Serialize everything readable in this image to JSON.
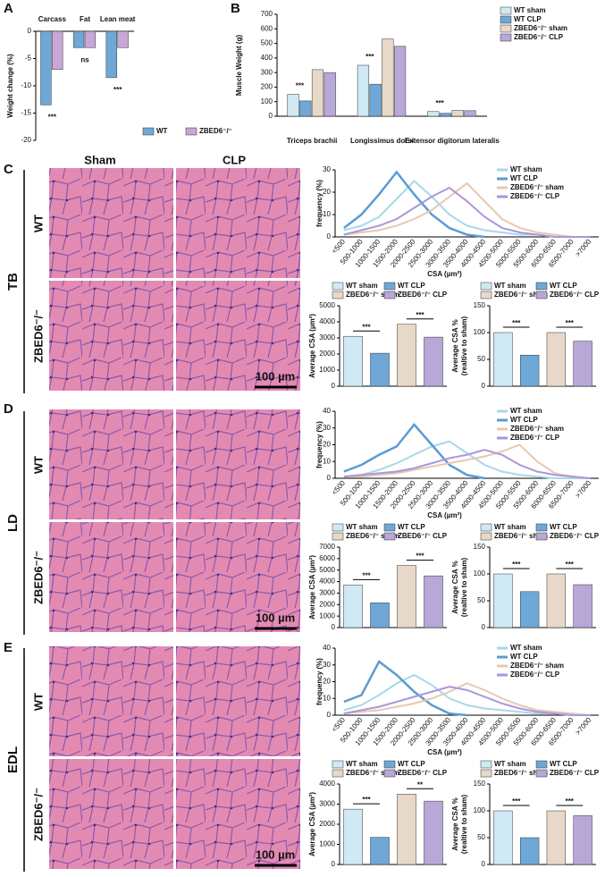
{
  "figure": {
    "panel_labels": [
      "A",
      "B",
      "C",
      "D",
      "E"
    ],
    "columns": [
      "Sham",
      "CLP"
    ],
    "sections": [
      {
        "name": "TB",
        "rows": [
          "WT",
          "ZBED6⁻/⁻"
        ],
        "scale_bar": "100 µm"
      },
      {
        "name": "LD",
        "rows": [
          "WT",
          "ZBED6⁻/⁻"
        ],
        "scale_bar": "100 µm"
      },
      {
        "name": "EDL",
        "rows": [
          "WT",
          "ZBED6⁻/⁻"
        ],
        "scale_bar": "100 µm"
      }
    ]
  },
  "chart_data": [
    {
      "type": "bar",
      "y_label": [
        "Weight change (%)"
      ],
      "categories": [
        "Carcass",
        "Fat",
        "Lean meat"
      ],
      "ylim": [
        -20,
        0
      ],
      "yticks": [
        -20,
        -15,
        -10,
        -5,
        0
      ],
      "annotations": [
        "***",
        "ns",
        "***"
      ],
      "series": [
        {
          "name": "WT",
          "color": "#6fa8d6",
          "values": [
            -13.5,
            -3,
            -8.5
          ]
        },
        {
          "name": "ZBED6⁻/⁻",
          "color": "#c9a6d8",
          "values": [
            -7,
            -3,
            -3
          ]
        }
      ]
    },
    {
      "type": "bar",
      "y_label": [
        "Muscle Weight (g)"
      ],
      "categories": [
        "Triceps brachii",
        "Longissimus dorsi",
        "Extensor digitorum lateralis"
      ],
      "ylim": [
        0,
        700
      ],
      "yticks": [
        0,
        100,
        200,
        300,
        400,
        500,
        600,
        700
      ],
      "annotations": [
        "***",
        "***",
        "***"
      ],
      "series": [
        {
          "name": "WT sham",
          "color": "#cfe9f5",
          "values": [
            150,
            350,
            32
          ]
        },
        {
          "name": "WT CLP",
          "color": "#6fa8d6",
          "values": [
            105,
            220,
            20
          ]
        },
        {
          "name": "ZBED6⁻/⁻ sham",
          "color": "#e8d8c8",
          "values": [
            320,
            530,
            40
          ]
        },
        {
          "name": "ZBED6⁻/⁻ CLP",
          "color": "#b8a8d8",
          "values": [
            300,
            480,
            38
          ]
        }
      ]
    },
    {
      "type": "line",
      "y_label": [
        "frequency (%)"
      ],
      "x_label": "CSA (µm²)",
      "ylim": [
        0,
        30
      ],
      "yticks": [
        0,
        10,
        20,
        30
      ],
      "categories": [
        "<500",
        "500-1000",
        "1000-1500",
        "1500-2000",
        "2000-2500",
        "2500-3000",
        "3000-3500",
        "3500-4000",
        "4000-4500",
        "4500-5000",
        "5000-5500",
        "5500-6000",
        "6000-6500",
        "6500-7000",
        ">7000"
      ],
      "series": [
        {
          "name": "WT sham",
          "color": "#a8d8e8",
          "values": [
            3,
            5,
            9,
            17,
            25,
            18,
            10,
            5,
            3,
            2,
            1,
            1,
            0,
            0,
            0
          ]
        },
        {
          "name": "WT CLP",
          "color": "#5b9bd5",
          "values": [
            4,
            10,
            19,
            29,
            19,
            10,
            4,
            1,
            0,
            null,
            null,
            null,
            null,
            null,
            null
          ]
        },
        {
          "name": "ZBED6⁻/⁻ sham",
          "color": "#e8c8b0",
          "values": [
            1,
            2,
            3,
            5,
            8,
            12,
            18,
            24,
            16,
            8,
            4,
            2,
            1,
            0,
            0
          ]
        },
        {
          "name": "ZBED6⁻/⁻ CLP",
          "color": "#a898d8",
          "values": [
            1,
            3,
            5,
            8,
            13,
            18,
            22,
            16,
            9,
            4,
            2,
            1,
            0,
            0,
            0
          ]
        }
      ]
    },
    {
      "type": "bar",
      "y_label": [
        "Average CSA (µm²)"
      ],
      "ylim": [
        0,
        5000
      ],
      "yticks": [
        0,
        1000,
        2000,
        3000,
        4000,
        5000
      ],
      "annotations": [
        "***",
        "***"
      ],
      "series": [
        {
          "name": "WT sham",
          "color": "#cfe9f5",
          "values": [
            3100
          ]
        },
        {
          "name": "WT CLP",
          "color": "#6fa8d6",
          "values": [
            2050
          ]
        },
        {
          "name": "ZBED6⁻/⁻ sham",
          "color": "#e8d8c8",
          "values": [
            3850
          ]
        },
        {
          "name": "ZBED6⁻/⁻ CLP",
          "color": "#b8a8d8",
          "values": [
            3050
          ]
        }
      ]
    },
    {
      "type": "bar",
      "y_label": [
        "Average CSA %",
        "(realtive to sham)"
      ],
      "ylim": [
        0,
        150
      ],
      "yticks": [
        0,
        50,
        100,
        150
      ],
      "annotations": [
        "***",
        "***"
      ],
      "series": [
        {
          "name": "WT sham",
          "color": "#cfe9f5",
          "values": [
            100
          ]
        },
        {
          "name": "WT CLP",
          "color": "#6fa8d6",
          "values": [
            58
          ]
        },
        {
          "name": "ZBED6⁻/⁻ sham",
          "color": "#e8d8c8",
          "values": [
            100
          ]
        },
        {
          "name": "ZBED6⁻/⁻ CLP",
          "color": "#b8a8d8",
          "values": [
            84
          ]
        }
      ]
    },
    {
      "type": "line",
      "y_label": [
        "frequency (%)"
      ],
      "x_label": "CSA (µm²)",
      "ylim": [
        0,
        40
      ],
      "yticks": [
        0,
        10,
        20,
        30,
        40
      ],
      "categories": [
        "<500",
        "500-1000",
        "1000-1500",
        "1500-2000",
        "2000-2500",
        "2500-3000",
        "3000-3500",
        "3500-4000",
        "4000-4500",
        "4500-5000",
        "5000-5500",
        "5500-6000",
        "6000-6500",
        "6500-7000",
        ">7000"
      ],
      "series": [
        {
          "name": "WT sham",
          "color": "#a8d8e8",
          "values": [
            1,
            2,
            5,
            9,
            14,
            19,
            22,
            15,
            8,
            4,
            2,
            1,
            0,
            0,
            0
          ]
        },
        {
          "name": "WT CLP",
          "color": "#5b9bd5",
          "values": [
            4,
            8,
            14,
            19,
            32,
            20,
            8,
            2,
            0,
            null,
            null,
            null,
            null,
            null,
            null
          ]
        },
        {
          "name": "ZBED6⁻/⁻ sham",
          "color": "#e8c8b0",
          "values": [
            1,
            1,
            2,
            3,
            5,
            7,
            9,
            11,
            13,
            16,
            20,
            10,
            3,
            1,
            0
          ]
        },
        {
          "name": "ZBED6⁻/⁻ CLP",
          "color": "#a898d8",
          "values": [
            1,
            2,
            3,
            4,
            6,
            9,
            12,
            14,
            17,
            14,
            8,
            4,
            2,
            1,
            0
          ]
        }
      ]
    },
    {
      "type": "bar",
      "y_label": [
        "Average CSA (µm²)"
      ],
      "ylim": [
        0,
        7000
      ],
      "yticks": [
        0,
        1000,
        2000,
        3000,
        4000,
        5000,
        6000,
        7000
      ],
      "annotations": [
        "***",
        "***"
      ],
      "series": [
        {
          "name": "WT sham",
          "color": "#cfe9f5",
          "values": [
            3700
          ]
        },
        {
          "name": "WT CLP",
          "color": "#6fa8d6",
          "values": [
            2150
          ]
        },
        {
          "name": "ZBED6⁻/⁻ sham",
          "color": "#e8d8c8",
          "values": [
            5400
          ]
        },
        {
          "name": "ZBED6⁻/⁻ CLP",
          "color": "#b8a8d8",
          "values": [
            4500
          ]
        }
      ]
    },
    {
      "type": "bar",
      "y_label": [
        "Average CSA %",
        "(realtive to sham)"
      ],
      "ylim": [
        0,
        150
      ],
      "yticks": [
        0,
        50,
        100,
        150
      ],
      "annotations": [
        "***",
        "***"
      ],
      "series": [
        {
          "name": "WT sham",
          "color": "#cfe9f5",
          "values": [
            100
          ]
        },
        {
          "name": "WT CLP",
          "color": "#6fa8d6",
          "values": [
            67
          ]
        },
        {
          "name": "ZBED6⁻/⁻ sham",
          "color": "#e8d8c8",
          "values": [
            100
          ]
        },
        {
          "name": "ZBED6⁻/⁻ CLP",
          "color": "#b8a8d8",
          "values": [
            80
          ]
        }
      ]
    },
    {
      "type": "line",
      "y_label": [
        "frequency (%)"
      ],
      "x_label": "CSA (µm²)",
      "ylim": [
        0,
        40
      ],
      "yticks": [
        0,
        10,
        20,
        30,
        40
      ],
      "categories": [
        "<500",
        "500-1000",
        "1000-1500",
        "1500-2000",
        "2000-2500",
        "2500-3000",
        "3000-3500",
        "3500-4000",
        "4000-4500",
        "4500-5000",
        "5000-5500",
        "5500-6000",
        "6000-6500",
        "6500-7000",
        ">7000"
      ],
      "series": [
        {
          "name": "WT sham",
          "color": "#a8d8e8",
          "values": [
            3,
            6,
            12,
            19,
            24,
            18,
            10,
            6,
            4,
            3,
            2,
            1,
            1,
            0,
            0
          ]
        },
        {
          "name": "WT CLP",
          "color": "#5b9bd5",
          "values": [
            8,
            12,
            32,
            24,
            14,
            6,
            1,
            0,
            null,
            null,
            null,
            null,
            null,
            null,
            null
          ]
        },
        {
          "name": "ZBED6⁻/⁻ sham",
          "color": "#e8c8b0",
          "values": [
            1,
            2,
            3,
            5,
            7,
            10,
            14,
            19,
            15,
            10,
            6,
            3,
            2,
            1,
            0
          ]
        },
        {
          "name": "ZBED6⁻/⁻ CLP",
          "color": "#a898d8",
          "values": [
            1,
            3,
            5,
            8,
            11,
            14,
            17,
            15,
            11,
            7,
            4,
            2,
            1,
            0,
            0
          ]
        }
      ]
    },
    {
      "type": "bar",
      "y_label": [
        "Average CSA (µm²)"
      ],
      "ylim": [
        0,
        4000
      ],
      "yticks": [
        0,
        1000,
        2000,
        3000,
        4000
      ],
      "annotations": [
        "***",
        "**"
      ],
      "series": [
        {
          "name": "WT sham",
          "color": "#cfe9f5",
          "values": [
            2750
          ]
        },
        {
          "name": "WT CLP",
          "color": "#6fa8d6",
          "values": [
            1350
          ]
        },
        {
          "name": "ZBED6⁻/⁻ sham",
          "color": "#e8d8c8",
          "values": [
            3500
          ]
        },
        {
          "name": "ZBED6⁻/⁻ CLP",
          "color": "#b8a8d8",
          "values": [
            3150
          ]
        }
      ]
    },
    {
      "type": "bar",
      "y_label": [
        "Average CSA %",
        "(realtive to sham)"
      ],
      "ylim": [
        0,
        150
      ],
      "yticks": [
        0,
        50,
        100,
        150
      ],
      "annotations": [
        "***",
        "***"
      ],
      "series": [
        {
          "name": "WT sham",
          "color": "#cfe9f5",
          "values": [
            100
          ]
        },
        {
          "name": "WT CLP",
          "color": "#6fa8d6",
          "values": [
            50
          ]
        },
        {
          "name": "ZBED6⁻/⁻ sham",
          "color": "#e8d8c8",
          "values": [
            100
          ]
        },
        {
          "name": "ZBED6⁻/⁻ CLP",
          "color": "#b8a8d8",
          "values": [
            91
          ]
        }
      ]
    }
  ]
}
